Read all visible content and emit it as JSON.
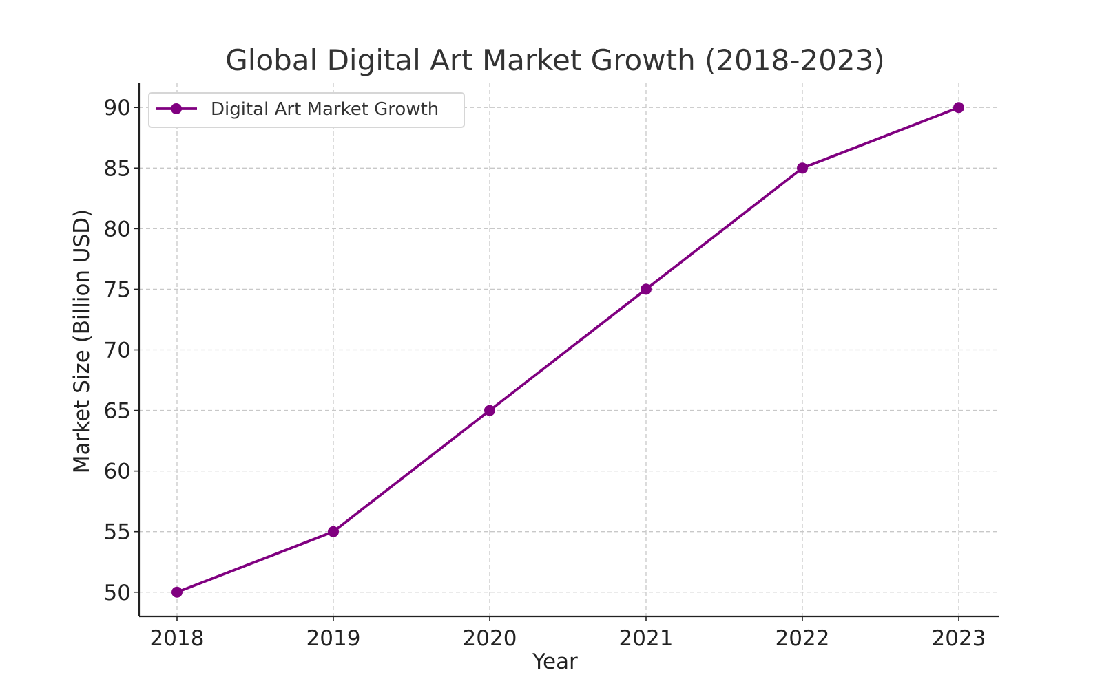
{
  "chart_data": {
    "type": "line",
    "title": "Global Digital Art Market Growth (2018-2023)",
    "xlabel": "Year",
    "ylabel": "Market Size (Billion USD)",
    "x": [
      "2018",
      "2019",
      "2020",
      "2021",
      "2022",
      "2023"
    ],
    "yticks": [
      50,
      55,
      60,
      65,
      70,
      75,
      80,
      85,
      90
    ],
    "ylim": [
      48,
      92
    ],
    "grid": true,
    "legend_position": "top-left",
    "series": [
      {
        "name": "Digital Art Market Growth",
        "values": [
          50,
          55,
          65,
          75,
          85,
          90
        ],
        "color": "#800080",
        "marker": "circle"
      }
    ]
  }
}
